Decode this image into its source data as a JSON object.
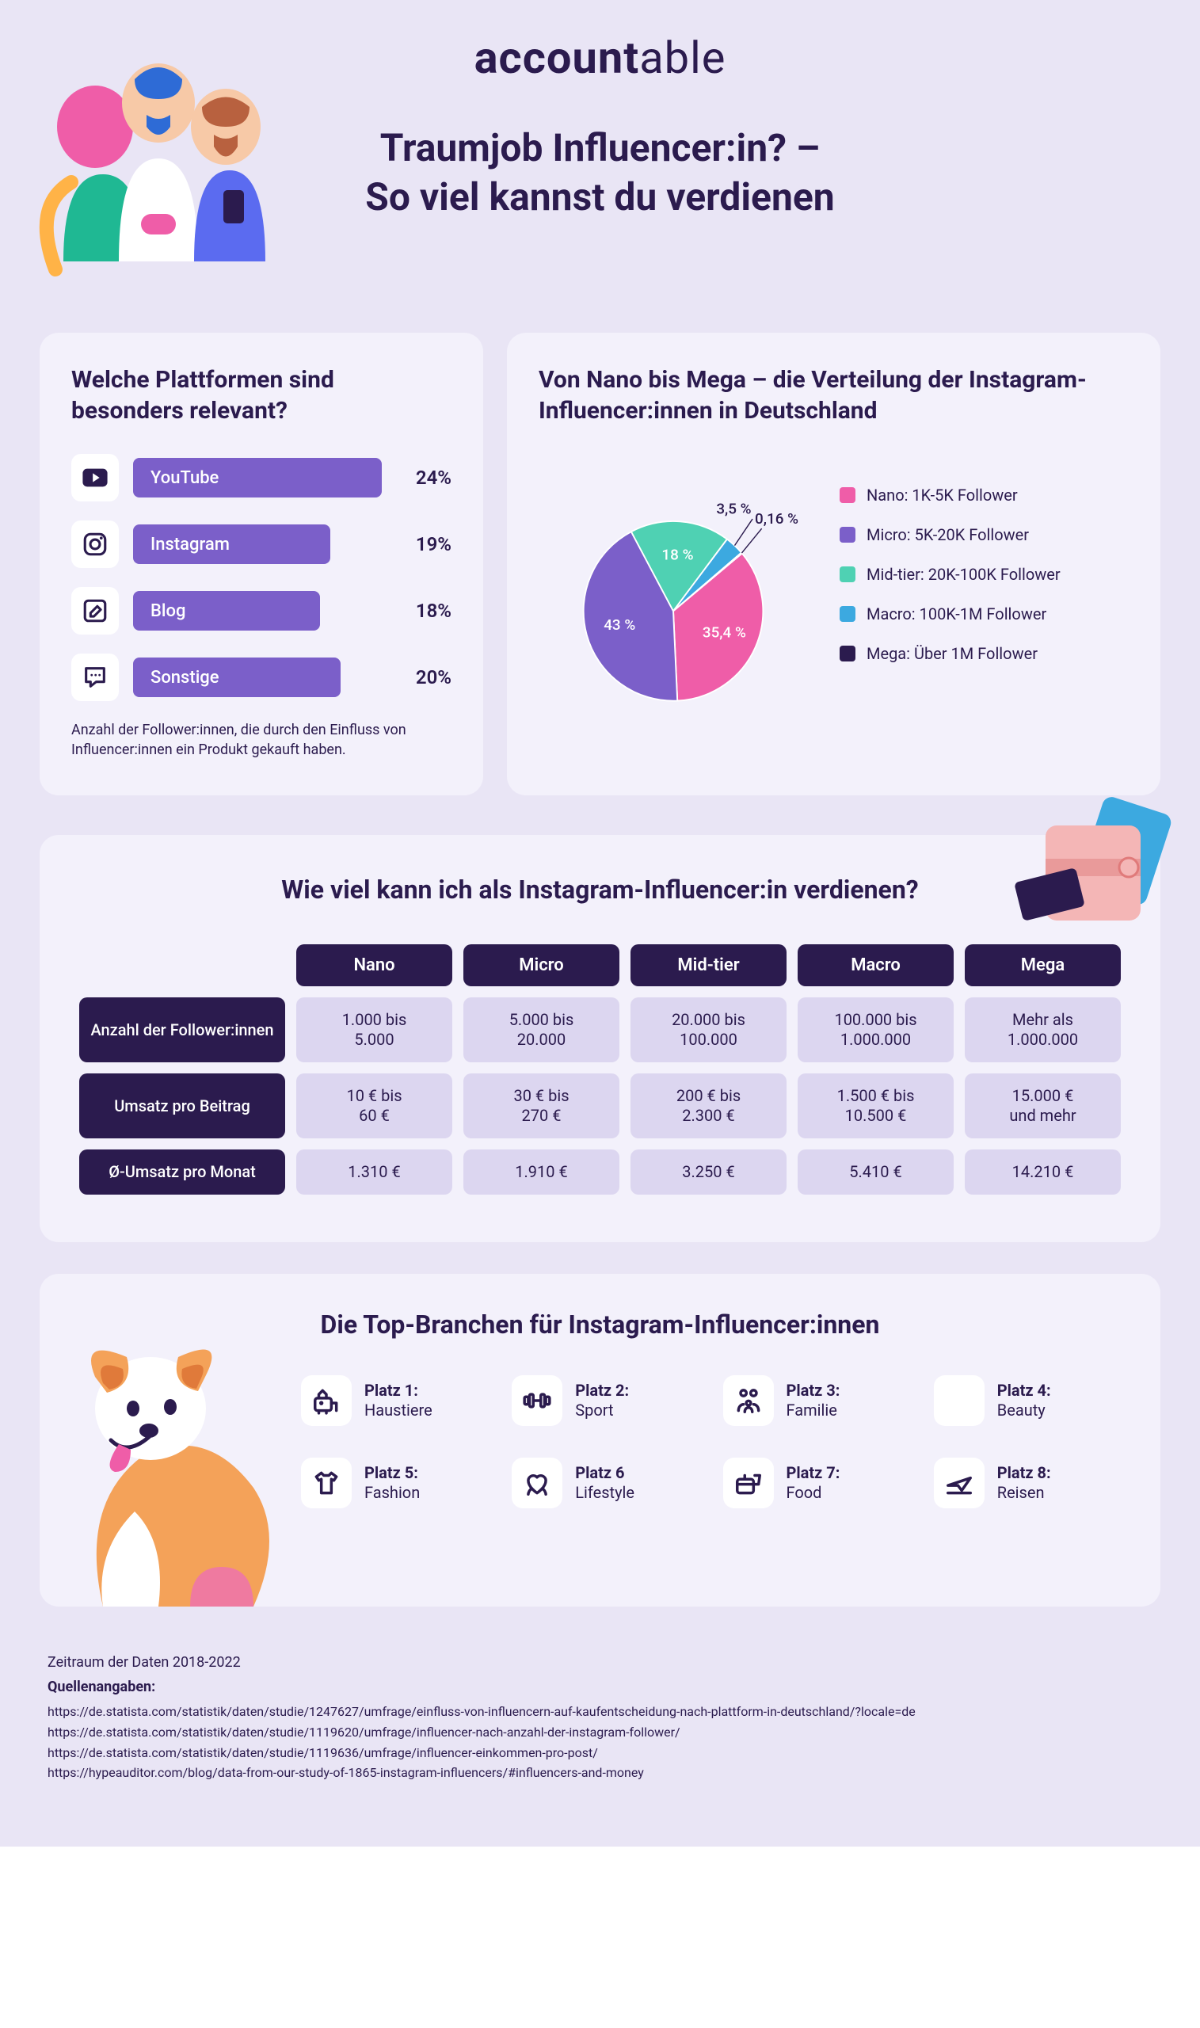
{
  "colors": {
    "page_bg": "#e9e5f5",
    "card_bg": "#f3f1fb",
    "text": "#2b1b4e",
    "bar": "#7b5fc9",
    "header_dark": "#2b1b4e",
    "cell_light": "#dcd6f0"
  },
  "logo": {
    "part1": "account",
    "part2": "able"
  },
  "title": "Traumjob Influencer:in? –\nSo viel kannst du verdienen",
  "platforms": {
    "heading": "Welche Plattformen sind besonders relevant?",
    "note": "Anzahl der Follower:innen, die durch den Einfluss von Influencer:innen ein Produkt gekauft haben.",
    "max_pct": 24,
    "items": [
      {
        "icon": "youtube",
        "label": "YouTube",
        "pct": 24,
        "pct_label": "24%"
      },
      {
        "icon": "instagram",
        "label": "Instagram",
        "pct": 19,
        "pct_label": "19%"
      },
      {
        "icon": "blog",
        "label": "Blog",
        "pct": 18,
        "pct_label": "18%"
      },
      {
        "icon": "other",
        "label": "Sonstige",
        "pct": 20,
        "pct_label": "20%"
      }
    ],
    "bar_color": "#7b5fc9"
  },
  "pie": {
    "heading": "Von Nano bis Mega – die Verteilung der Instagram-Influencer:innen in Deutschland",
    "slices": [
      {
        "key": "nano",
        "label": "Nano: 1K-5K Follower",
        "value": 35.4,
        "pct_label": "35,4 %",
        "color": "#ef5da8"
      },
      {
        "key": "micro",
        "label": "Micro: 5K-20K Follower",
        "value": 43.0,
        "pct_label": "43 %",
        "color": "#7b5fc9"
      },
      {
        "key": "midtier",
        "label": "Mid-tier: 20K-100K Follower",
        "value": 18.0,
        "pct_label": "18 %",
        "color": "#4fd1b3"
      },
      {
        "key": "macro",
        "label": "Macro: 100K-1M Follower",
        "value": 3.5,
        "pct_label": "3,5 %",
        "color": "#3ca9e0"
      },
      {
        "key": "mega",
        "label": "Mega: Über 1M Follower",
        "value": 0.16,
        "pct_label": "0,16 %",
        "color": "#2b1b4e"
      }
    ],
    "start_angle_deg": -40
  },
  "earnings": {
    "heading": "Wie viel kann ich als Instagram-Influencer:in verdienen?",
    "col_headers": [
      "Nano",
      "Micro",
      "Mid-tier",
      "Macro",
      "Mega"
    ],
    "row_headers": [
      "Anzahl der Follower:innen",
      "Umsatz pro Beitrag",
      "Ø-Umsatz pro Monat"
    ],
    "rows": [
      [
        "1.000 bis\n5.000",
        "5.000 bis\n20.000",
        "20.000 bis\n100.000",
        "100.000 bis\n1.000.000",
        "Mehr als\n1.000.000"
      ],
      [
        "10 € bis\n60 €",
        "30 € bis\n270 €",
        "200 € bis\n2.300 €",
        "1.500 € bis\n10.500 €",
        "15.000 €\nund mehr"
      ],
      [
        "1.310 €",
        "1.910 €",
        "3.250 €",
        "5.410 €",
        "14.210 €"
      ]
    ]
  },
  "branches": {
    "heading": "Die Top-Branchen für Instagram-Influencer:innen",
    "items": [
      {
        "rank": "Platz 1:",
        "label": "Haustiere",
        "icon": "pet"
      },
      {
        "rank": "Platz 2:",
        "label": "Sport",
        "icon": "sport"
      },
      {
        "rank": "Platz 3:",
        "label": "Familie",
        "icon": "family"
      },
      {
        "rank": "Platz 4:",
        "label": "Beauty",
        "icon": "beauty"
      },
      {
        "rank": "Platz 5:",
        "label": "Fashion",
        "icon": "fashion"
      },
      {
        "rank": "Platz 6",
        "label": "Lifestyle",
        "icon": "lifestyle"
      },
      {
        "rank": "Platz 7:",
        "label": "Food",
        "icon": "food"
      },
      {
        "rank": "Platz 8:",
        "label": "Reisen",
        "icon": "travel"
      }
    ]
  },
  "footer": {
    "period": "Zeitraum der Daten 2018-2022",
    "sources_title": "Quellenangaben:",
    "sources": [
      "https://de.statista.com/statistik/daten/studie/1247627/umfrage/einfluss-von-influencern-auf-kaufentscheidung-nach-plattform-in-deutschland/?locale=de",
      "https://de.statista.com/statistik/daten/studie/1119620/umfrage/influencer-nach-anzahl-der-instagram-follower/",
      "https://de.statista.com/statistik/daten/studie/1119636/umfrage/influencer-einkommen-pro-post/",
      "https://hypeauditor.com/blog/data-from-our-study-of-1865-instagram-influencers/#influencers-and-money"
    ]
  }
}
